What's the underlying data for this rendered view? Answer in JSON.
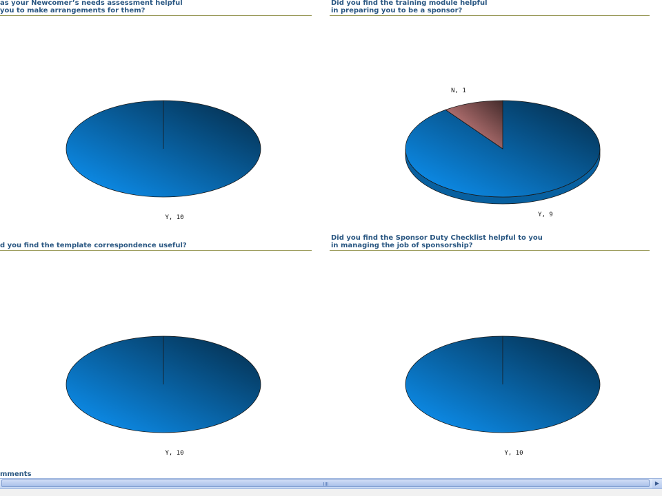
{
  "chart_data": [
    {
      "type": "pie",
      "title_lines": [
        "as your Newcomer’s needs assessment helpful",
        " you to make arrangements for them?"
      ],
      "slices": [
        {
          "label": "Y",
          "value": 10,
          "color": "#0a78c8",
          "display": "Y, 10"
        }
      ]
    },
    {
      "type": "pie",
      "title_lines": [
        "Did you find the training module helpful",
        "in preparing you to be a sponsor?"
      ],
      "slices": [
        {
          "label": "Y",
          "value": 9,
          "color": "#0a78c8",
          "display": "Y, 9"
        },
        {
          "label": "N",
          "value": 1,
          "color": "#c27a7a",
          "display": "N, 1"
        }
      ]
    },
    {
      "type": "pie",
      "title_lines": [
        "d you find the template correspondence useful?"
      ],
      "slices": [
        {
          "label": "Y",
          "value": 10,
          "color": "#0a78c8",
          "display": "Y, 10"
        }
      ]
    },
    {
      "type": "pie",
      "title_lines": [
        "Did you find the Sponsor Duty Checklist helpful to you",
        "in managing the job of sponsorship?"
      ],
      "slices": [
        {
          "label": "Y",
          "value": 10,
          "color": "#0a78c8",
          "display": "Y, 10"
        }
      ]
    }
  ],
  "comments_heading": "mments",
  "scrollbar_arrow_icon": "arrow-right-icon"
}
